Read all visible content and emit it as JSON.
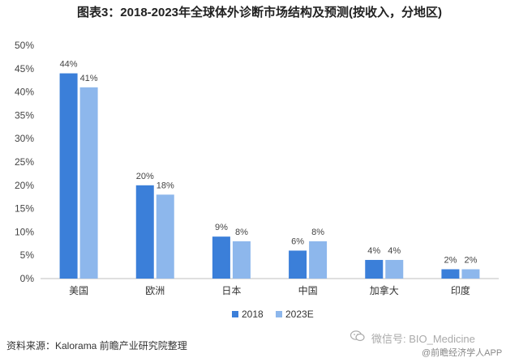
{
  "chart_data": {
    "type": "bar",
    "title": "图表3：2018-2023年全球体外诊断市场结构及预测(按收入，分地区)",
    "categories": [
      "美国",
      "欧洲",
      "日本",
      "中国",
      "加拿大",
      "印度"
    ],
    "series": [
      {
        "name": "2018",
        "values": [
          44,
          20,
          9,
          6,
          4,
          2
        ],
        "labels": [
          "44%",
          "20%",
          "9%",
          "6%",
          "4%",
          "2%"
        ],
        "color": "#3b7fd9"
      },
      {
        "name": "2023E",
        "values": [
          41,
          18,
          8,
          8,
          4,
          2
        ],
        "labels": [
          "41%",
          "18%",
          "8%",
          "8%",
          "4%",
          "2%"
        ],
        "color": "#8db7ec"
      }
    ],
    "ylim": [
      0,
      50
    ],
    "yticks": [
      0,
      5,
      10,
      15,
      20,
      25,
      30,
      35,
      40,
      45,
      50
    ],
    "ytick_labels": [
      "0%",
      "5%",
      "10%",
      "15%",
      "20%",
      "25%",
      "30%",
      "35%",
      "40%",
      "45%",
      "50%"
    ],
    "xlabel": "",
    "ylabel": "",
    "grid": false,
    "legend": "bottom-center"
  },
  "footer": {
    "source": "资料来源：Kalorama 前瞻产业研究院整理",
    "watermark_line1": "微信号: BIO_Medicine",
    "watermark_line2": "@前瞻经济学人APP"
  },
  "icons": {
    "wechat": "wechat-icon"
  }
}
